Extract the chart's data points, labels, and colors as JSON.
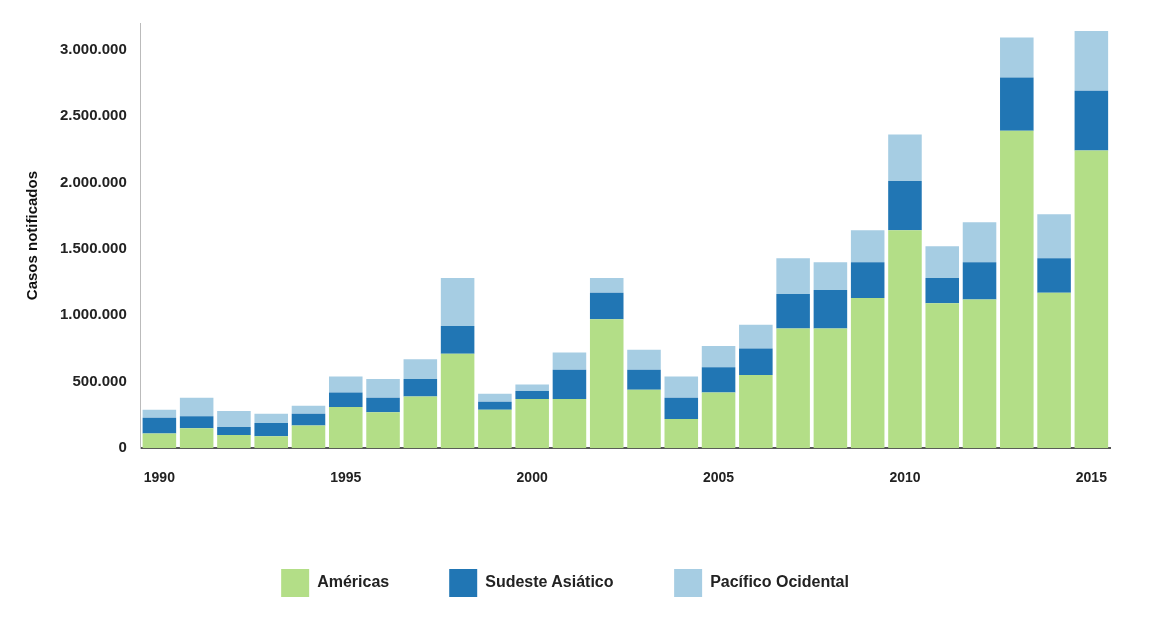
{
  "chart_data": {
    "type": "bar",
    "stacked": true,
    "ylabel": "Casos notificados",
    "categories": [
      "1990",
      null,
      null,
      null,
      null,
      "1995",
      null,
      null,
      null,
      null,
      "2000",
      null,
      null,
      null,
      null,
      "2005",
      null,
      null,
      null,
      null,
      "2010",
      null,
      null,
      null,
      null,
      "2015"
    ],
    "series": [
      {
        "name": "Américas",
        "color": "#b3de87",
        "values": [
          110000,
          150000,
          100000,
          90000,
          170000,
          310000,
          270000,
          390000,
          710000,
          290000,
          370000,
          370000,
          970000,
          440000,
          220000,
          420000,
          550000,
          900000,
          900000,
          1130000,
          1640000,
          1090000,
          1120000,
          2390000,
          1170000,
          2240000
        ]
      },
      {
        "name": "Sudeste Asiático",
        "color": "#2176b4",
        "values": [
          120000,
          90000,
          60000,
          100000,
          90000,
          110000,
          110000,
          130000,
          210000,
          60000,
          60000,
          220000,
          200000,
          150000,
          160000,
          190000,
          200000,
          260000,
          290000,
          270000,
          370000,
          190000,
          280000,
          400000,
          260000,
          450000
        ]
      },
      {
        "name": "Pacífico Ocidental",
        "color": "#a6cde3",
        "values": [
          60000,
          140000,
          120000,
          70000,
          60000,
          120000,
          140000,
          150000,
          360000,
          60000,
          50000,
          130000,
          110000,
          150000,
          160000,
          160000,
          180000,
          270000,
          210000,
          240000,
          350000,
          240000,
          300000,
          300000,
          330000,
          450000
        ]
      }
    ],
    "ylim": [
      0,
      3200000
    ],
    "yticks": [
      0,
      {
        "value": 500000,
        "label": "500.000"
      },
      {
        "value": 1000000,
        "label": "1.000.000"
      },
      {
        "value": 1500000,
        "label": "1.500.000"
      },
      {
        "value": 2000000,
        "label": "2.000.000"
      },
      {
        "value": 2500000,
        "label": "2.500.000"
      },
      {
        "value": 3000000,
        "label": "3.000.000"
      }
    ],
    "grid": false,
    "legend": "bottom"
  }
}
